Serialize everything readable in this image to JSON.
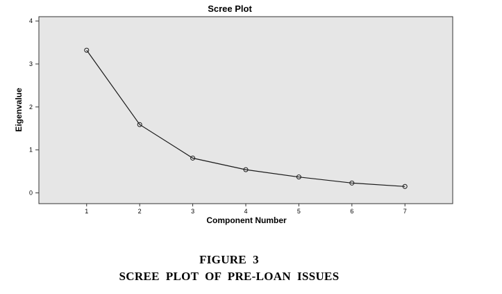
{
  "chart_data": {
    "type": "line",
    "title": "Scree Plot",
    "xlabel": "Component Number",
    "ylabel": "Eigenvalue",
    "x": [
      1,
      2,
      3,
      4,
      5,
      6,
      7
    ],
    "y": [
      3.32,
      1.59,
      0.81,
      0.54,
      0.37,
      0.23,
      0.15
    ],
    "xlim": [
      0.1,
      7.9
    ],
    "ylim": [
      -0.25,
      4.1
    ],
    "yticks": [
      0,
      1,
      2,
      3,
      4
    ],
    "xticks": [
      1,
      2,
      3,
      4,
      5,
      6,
      7
    ],
    "grid": false,
    "marker": "open-circle",
    "colors": {
      "plot_background": "#e6e6e6",
      "line": "#1a1a1a",
      "frame": "#333333"
    }
  },
  "caption": {
    "figure_number": "FIGURE  3",
    "figure_title": "SCREE  PLOT  OF  PRE-LOAN  ISSUES"
  }
}
